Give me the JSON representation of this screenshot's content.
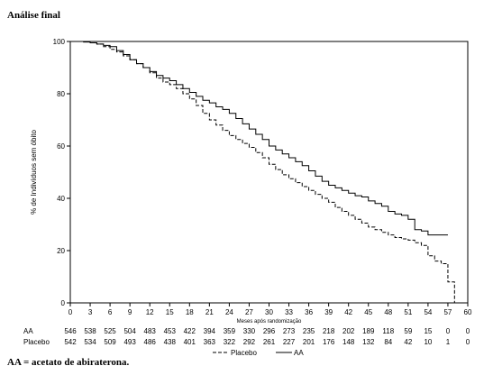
{
  "heading": "Análise final",
  "footnote": "AA = acetato de abiraterona.",
  "chart_data": {
    "type": "line",
    "title": "Análise final",
    "xlabel": "Meses após randomização",
    "ylabel": "% de Indivíduos sem óbito",
    "xlim": [
      0,
      60
    ],
    "ylim": [
      0,
      100
    ],
    "x_ticks": [
      0,
      3,
      6,
      9,
      12,
      15,
      18,
      21,
      24,
      27,
      30,
      33,
      36,
      39,
      42,
      45,
      48,
      51,
      54,
      57,
      60
    ],
    "y_ticks": [
      0,
      20,
      40,
      60,
      80,
      100
    ],
    "grid": false,
    "legend_position": "bottom-center",
    "series": [
      {
        "name": "AA",
        "style": "solid",
        "color": "#000000",
        "x": [
          0,
          1,
          2,
          3,
          4,
          5,
          6,
          7,
          8,
          9,
          10,
          11,
          12,
          13,
          14,
          15,
          16,
          17,
          18,
          19,
          20,
          21,
          22,
          23,
          24,
          25,
          26,
          27,
          28,
          29,
          30,
          31,
          32,
          33,
          34,
          35,
          36,
          37,
          38,
          39,
          40,
          41,
          42,
          43,
          44,
          45,
          46,
          47,
          48,
          49,
          50,
          51,
          52,
          53,
          54,
          55,
          56,
          57
        ],
        "y": [
          100,
          100,
          99.8,
          99.5,
          99,
          98.5,
          98,
          96.5,
          95,
          93,
          91.5,
          90,
          88.5,
          87,
          86,
          85,
          83.5,
          82,
          80.5,
          79,
          77.5,
          76.5,
          75,
          74,
          72.5,
          70.5,
          68.5,
          66.5,
          64.5,
          62.5,
          60,
          58.5,
          57,
          55.5,
          54,
          52.5,
          50.5,
          48.5,
          46.5,
          45,
          44,
          43,
          42,
          41,
          40.5,
          39,
          38,
          37,
          35,
          34,
          33.5,
          32,
          28,
          27.5,
          26,
          26,
          26,
          26
        ]
      },
      {
        "name": "Placebo",
        "style": "dashed",
        "color": "#000000",
        "x": [
          0,
          1,
          2,
          3,
          4,
          5,
          6,
          7,
          8,
          9,
          10,
          11,
          12,
          13,
          14,
          15,
          16,
          17,
          18,
          19,
          20,
          21,
          22,
          23,
          24,
          25,
          26,
          27,
          28,
          29,
          30,
          31,
          32,
          33,
          34,
          35,
          36,
          37,
          38,
          39,
          40,
          41,
          42,
          43,
          44,
          45,
          46,
          47,
          48,
          49,
          50,
          51,
          52,
          53,
          54,
          55,
          56,
          57,
          58
        ],
        "y": [
          100,
          100,
          100,
          99.5,
          99,
          98,
          97,
          96,
          94.5,
          93,
          91.5,
          90,
          88,
          86,
          84.5,
          83.5,
          82,
          80,
          78,
          75.5,
          72.5,
          70,
          68,
          66,
          64,
          62.5,
          61,
          59.5,
          57.5,
          55.5,
          53,
          51,
          49,
          47.5,
          46,
          44.5,
          43,
          41.5,
          40,
          38.5,
          36.5,
          35,
          33.5,
          32,
          30.5,
          29,
          28,
          27,
          26,
          25,
          24.5,
          24,
          23,
          22,
          18,
          16,
          15,
          8,
          0
        ]
      }
    ],
    "risk_table": {
      "rows": [
        {
          "label": "AA",
          "values": [
            "546",
            "538",
            "525",
            "504",
            "483",
            "453",
            "422",
            "394",
            "359",
            "330",
            "296",
            "273",
            "235",
            "218",
            "202",
            "189",
            "118",
            "59",
            "15",
            "0",
            "0"
          ]
        },
        {
          "label": "Placebo",
          "values": [
            "542",
            "534",
            "509",
            "493",
            "486",
            "438",
            "401",
            "363",
            "322",
            "292",
            "261",
            "227",
            "201",
            "176",
            "148",
            "132",
            "84",
            "42",
            "10",
            "1",
            "0"
          ]
        }
      ]
    }
  }
}
